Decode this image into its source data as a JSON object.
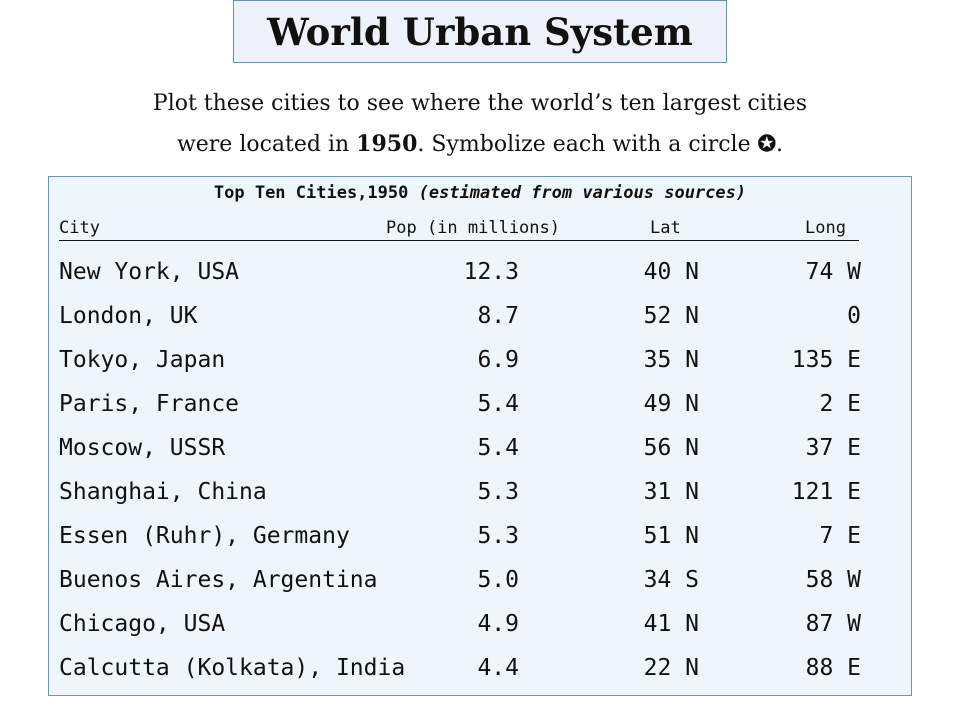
{
  "title": "World Urban System",
  "intro": {
    "line1": "Plot these cities to see where the world’s ten largest cities",
    "line2_pre": "were located in ",
    "year": "1950",
    "line2_post": ". Symbolize each  with a circle ",
    "circle_symbol": "✪",
    "period": "."
  },
  "table": {
    "title_main": "Top Ten Cities,1950 ",
    "title_note": "(estimated from various sources)",
    "headers": {
      "city": "City",
      "pop": "Pop (in millions)",
      "lat": "Lat",
      "long": "Long"
    },
    "rows": [
      {
        "city": "New York, USA",
        "pop": "12.3",
        "lat": "40 N",
        "long": "74 W"
      },
      {
        "city": "London, UK",
        "pop": "8.7",
        "lat": "52 N",
        "long": "0"
      },
      {
        "city": "Tokyo, Japan",
        "pop": "6.9",
        "lat": "35 N",
        "long": "135 E"
      },
      {
        "city": "Paris, France",
        "pop": "5.4",
        "lat": "49 N",
        "long": "2 E"
      },
      {
        "city": "Moscow, USSR",
        "pop": "5.4",
        "lat": "56 N",
        "long": "37 E"
      },
      {
        "city": "Shanghai, China",
        "pop": "5.3",
        "lat": "31 N",
        "long": "121 E"
      },
      {
        "city": "Essen (Ruhr), Germany",
        "pop": "5.3",
        "lat": "51 N",
        "long": "7 E"
      },
      {
        "city": "Buenos Aires, Argentina",
        "pop": "5.0",
        "lat": "34 S",
        "long": "58 W"
      },
      {
        "city": "Chicago, USA",
        "pop": "4.9",
        "lat": "41 N",
        "long": "87 W"
      },
      {
        "city": "Calcutta (Kolkata), India",
        "pop": "4.4",
        "lat": "22 N",
        "long": "88 E"
      }
    ]
  }
}
